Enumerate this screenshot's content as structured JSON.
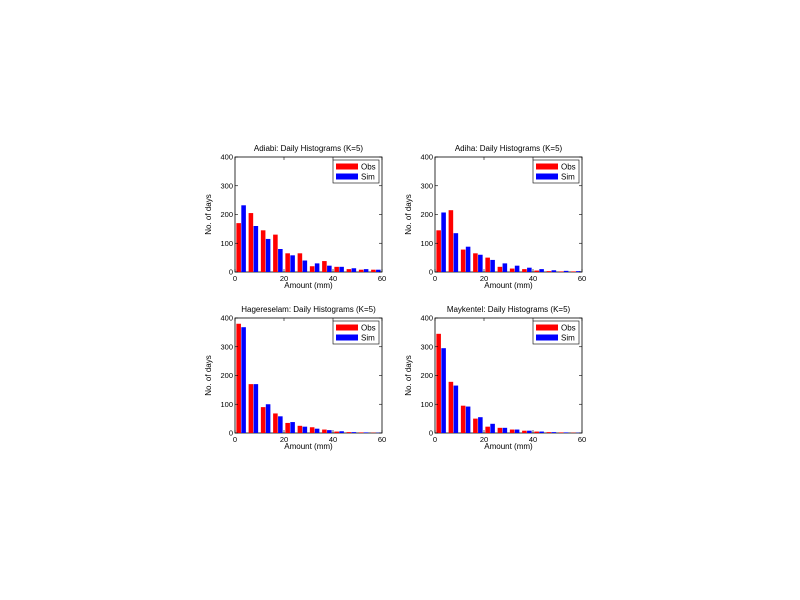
{
  "colors": {
    "obs": "#ff0000",
    "sim": "#0000ff"
  },
  "chart_data": [
    {
      "type": "bar",
      "title": "Adiabi: Daily Histograms (K=5)",
      "xlabel": "Amount (mm)",
      "ylabel": "No. of days",
      "xlim": [
        0,
        60
      ],
      "ylim": [
        0,
        400
      ],
      "xticks": [
        "0",
        "20",
        "40",
        "60"
      ],
      "yticks": [
        "0",
        "100",
        "200",
        "300",
        "400"
      ],
      "bin_centers": [
        2.5,
        7.5,
        12.5,
        17.5,
        22.5,
        27.5,
        32.5,
        37.5,
        42.5,
        47.5,
        52.5,
        57.5
      ],
      "legend": {
        "placement": "top-right"
      },
      "series": [
        {
          "name": "Obs",
          "values": [
            170,
            205,
            145,
            130,
            65,
            65,
            20,
            38,
            18,
            10,
            8,
            8
          ]
        },
        {
          "name": "Sim",
          "values": [
            232,
            160,
            115,
            80,
            58,
            40,
            30,
            22,
            18,
            13,
            10,
            8
          ]
        }
      ]
    },
    {
      "type": "bar",
      "title": "Adiha: Daily Histograms (K=5)",
      "xlabel": "Amount (mm)",
      "ylabel": "No. of days",
      "xlim": [
        0,
        60
      ],
      "ylim": [
        0,
        400
      ],
      "xticks": [
        "0",
        "20",
        "40",
        "60"
      ],
      "yticks": [
        "0",
        "100",
        "200",
        "300",
        "400"
      ],
      "bin_centers": [
        2.5,
        7.5,
        12.5,
        17.5,
        22.5,
        27.5,
        32.5,
        37.5,
        42.5,
        47.5,
        52.5,
        57.5
      ],
      "legend": {
        "placement": "top-right"
      },
      "series": [
        {
          "name": "Obs",
          "values": [
            145,
            215,
            78,
            65,
            50,
            18,
            12,
            10,
            5,
            3,
            2,
            2
          ]
        },
        {
          "name": "Sim",
          "values": [
            207,
            135,
            88,
            60,
            42,
            30,
            22,
            15,
            10,
            6,
            4,
            3
          ]
        }
      ]
    },
    {
      "type": "bar",
      "title": "Hagereselam: Daily Histograms (K=5)",
      "xlabel": "Amount (mm)",
      "ylabel": "No. of days",
      "xlim": [
        0,
        60
      ],
      "ylim": [
        0,
        400
      ],
      "xticks": [
        "0",
        "20",
        "40",
        "60"
      ],
      "yticks": [
        "0",
        "100",
        "200",
        "300",
        "400"
      ],
      "bin_centers": [
        2.5,
        7.5,
        12.5,
        17.5,
        22.5,
        27.5,
        32.5,
        37.5,
        42.5,
        47.5,
        52.5,
        57.5
      ],
      "legend": {
        "placement": "top-right"
      },
      "series": [
        {
          "name": "Obs",
          "values": [
            380,
            170,
            90,
            68,
            35,
            25,
            20,
            12,
            5,
            3,
            2,
            1
          ]
        },
        {
          "name": "Sim",
          "values": [
            368,
            170,
            100,
            58,
            38,
            22,
            15,
            10,
            6,
            3,
            2,
            1
          ]
        }
      ]
    },
    {
      "type": "bar",
      "title": "Maykentel: Daily Histograms (K=5)",
      "xlabel": "Amount (mm)",
      "ylabel": "No. of days",
      "xlim": [
        0,
        60
      ],
      "ylim": [
        0,
        400
      ],
      "xticks": [
        "0",
        "20",
        "40",
        "60"
      ],
      "yticks": [
        "0",
        "100",
        "200",
        "300",
        "400"
      ],
      "bin_centers": [
        2.5,
        7.5,
        12.5,
        17.5,
        22.5,
        27.5,
        32.5,
        37.5,
        42.5,
        47.5,
        52.5,
        57.5
      ],
      "legend": {
        "placement": "top-right"
      },
      "series": [
        {
          "name": "Obs",
          "values": [
            345,
            178,
            95,
            50,
            22,
            18,
            12,
            8,
            5,
            3,
            2,
            1
          ]
        },
        {
          "name": "Sim",
          "values": [
            295,
            165,
            92,
            55,
            32,
            18,
            12,
            8,
            5,
            3,
            2,
            1
          ]
        }
      ]
    }
  ]
}
